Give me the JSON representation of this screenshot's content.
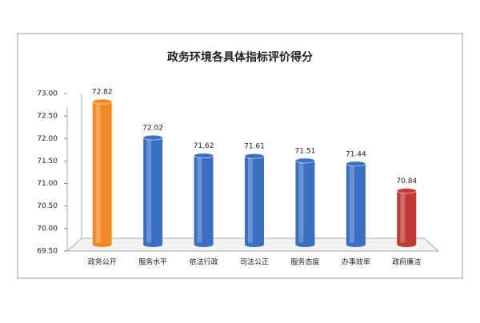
{
  "chart_data": {
    "type": "bar",
    "title": "政务环境各具体指标评价得分",
    "categories": [
      "政务公开",
      "服务水平",
      "依法行政",
      "司法公正",
      "服务态度",
      "办事效率",
      "政府廉洁"
    ],
    "values": [
      72.82,
      72.02,
      71.62,
      71.61,
      71.51,
      71.44,
      70.84
    ],
    "colors": [
      "#f08a24",
      "#3a6fc4",
      "#3a6fc4",
      "#3a6fc4",
      "#3a6fc4",
      "#3a6fc4",
      "#c03a36"
    ],
    "ylim": [
      69.5,
      73
    ],
    "yticks": [
      {
        "value": 69.5,
        "label": "69.50"
      },
      {
        "value": 70,
        "label": "70.00"
      },
      {
        "value": 70.5,
        "label": "70.50"
      },
      {
        "value": 71,
        "label": "71.00"
      },
      {
        "value": 71.5,
        "label": "71.50"
      },
      {
        "value": 72,
        "label": "72.00"
      },
      {
        "value": 72.5,
        "label": "72.50"
      },
      {
        "value": 73,
        "label": "73.00"
      }
    ]
  }
}
